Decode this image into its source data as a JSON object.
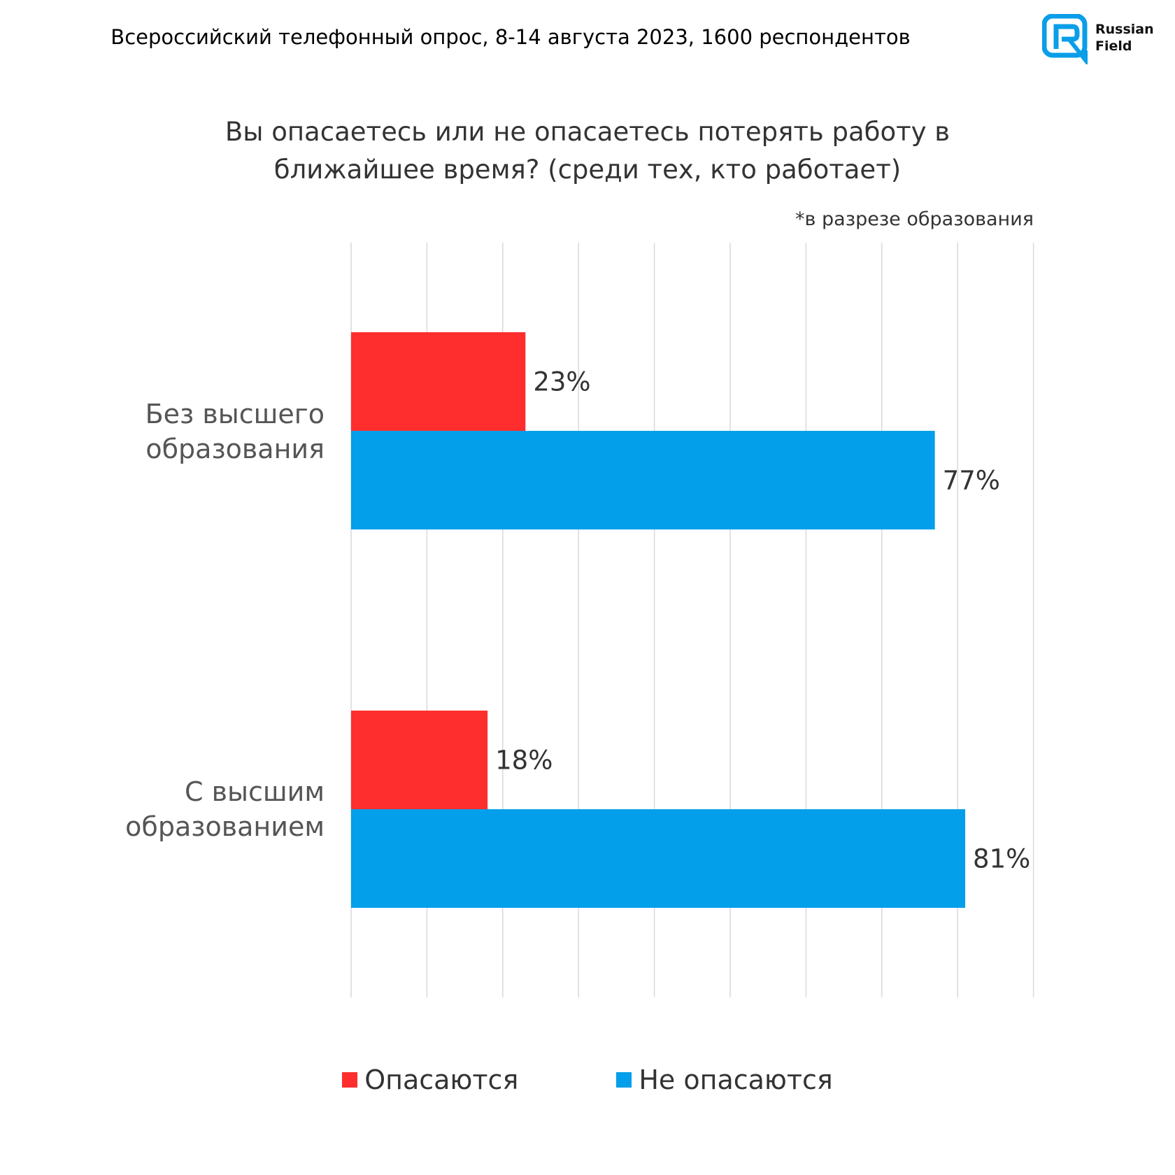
{
  "header": "Всероссийский телефонный опрос, 8-14 августа 2023, 1600 респондентов",
  "logo": {
    "line1": "Russian",
    "line2": "Field",
    "color": "#0a9ee8"
  },
  "chart_data": {
    "type": "bar",
    "orientation": "horizontal",
    "title": "Вы опасаетесь или не опасаетесь потерять работу в ближайшее время? (среди тех, кто работает)",
    "title_lines": [
      "Вы опасаетесь или не опасаетесь потерять работу в",
      "ближайшее время? (среди тех, кто работает)"
    ],
    "subtitle": "*в разрезе образования",
    "categories": [
      "Без высшего образования",
      "С высшим образованием"
    ],
    "category_lines": [
      [
        "Без высшего",
        "образования"
      ],
      [
        "С высшим",
        "образованием"
      ]
    ],
    "series": [
      {
        "name": "Опасаются",
        "color": "#ff2e2e",
        "values": [
          23,
          18
        ],
        "labels": [
          "23%",
          "18%"
        ]
      },
      {
        "name": "Не опасаются",
        "color": "#039fea",
        "values": [
          77,
          81
        ],
        "labels": [
          "77%",
          "81%"
        ]
      }
    ],
    "xlim": [
      0,
      90
    ],
    "grid": true,
    "legend": "bottom"
  }
}
